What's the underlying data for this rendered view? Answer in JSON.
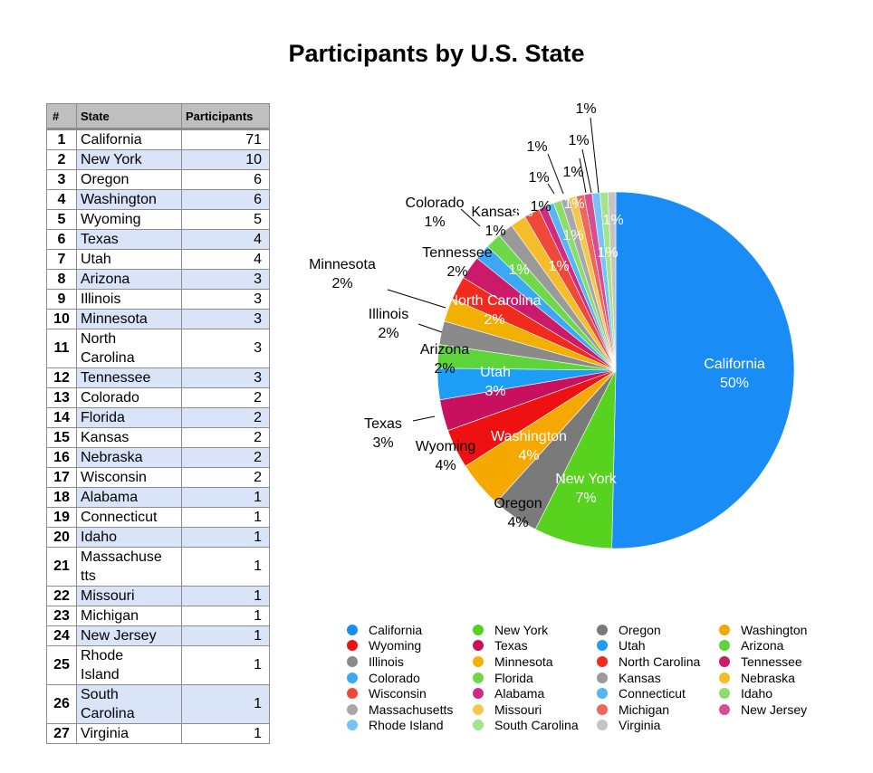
{
  "chart_data": {
    "type": "pie",
    "title": "Participants by U.S. State",
    "table": {
      "headers": [
        "#",
        "State",
        "Participants"
      ],
      "rows": [
        [
          "1",
          "California",
          "71"
        ],
        [
          "2",
          "New York",
          "10"
        ],
        [
          "3",
          "Oregon",
          "6"
        ],
        [
          "4",
          "Washington",
          "6"
        ],
        [
          "5",
          "Wyoming",
          "5"
        ],
        [
          "6",
          "Texas",
          "4"
        ],
        [
          "7",
          "Utah",
          "4"
        ],
        [
          "8",
          "Arizona",
          "3"
        ],
        [
          "9",
          "Illinois",
          "3"
        ],
        [
          "10",
          "Minnesota",
          "3"
        ],
        [
          "11",
          "North Carolina",
          "3"
        ],
        [
          "12",
          "Tennessee",
          "3"
        ],
        [
          "13",
          "Colorado",
          "2"
        ],
        [
          "14",
          "Florida",
          "2"
        ],
        [
          "15",
          "Kansas",
          "2"
        ],
        [
          "16",
          "Nebraska",
          "2"
        ],
        [
          "17",
          "Wisconsin",
          "2"
        ],
        [
          "18",
          "Alabama",
          "1"
        ],
        [
          "19",
          "Connecticut",
          "1"
        ],
        [
          "20",
          "Idaho",
          "1"
        ],
        [
          "21",
          "Massachusetts",
          "1"
        ],
        [
          "22",
          "Missouri",
          "1"
        ],
        [
          "23",
          "Michigan",
          "1"
        ],
        [
          "24",
          "New Jersey",
          "1"
        ],
        [
          "25",
          "Rhode Island",
          "1"
        ],
        [
          "26",
          "South Carolina",
          "1"
        ],
        [
          "27",
          "Virginia",
          "1"
        ]
      ]
    },
    "table_display_names": {
      "11": [
        "North",
        "Carolina"
      ],
      "21": [
        "Massachuse",
        "tts"
      ],
      "25": [
        "Rhode",
        "Island"
      ],
      "26": [
        "South",
        "Carolina"
      ]
    },
    "slices": [
      {
        "label": "California",
        "value": 71,
        "pct": "50%",
        "color": "#1a8cf5"
      },
      {
        "label": "New York",
        "value": 10,
        "pct": "7%",
        "color": "#57d21f"
      },
      {
        "label": "Oregon",
        "value": 6,
        "pct": "4%",
        "color": "#7a7a7a"
      },
      {
        "label": "Washington",
        "value": 6,
        "pct": "4%",
        "color": "#f5a800"
      },
      {
        "label": "Wyoming",
        "value": 5,
        "pct": "4%",
        "color": "#ee1111"
      },
      {
        "label": "Texas",
        "value": 4,
        "pct": "3%",
        "color": "#c8105e"
      },
      {
        "label": "Utah",
        "value": 4,
        "pct": "3%",
        "color": "#1c9ef7"
      },
      {
        "label": "Arizona",
        "value": 3,
        "pct": "2%",
        "color": "#5cd43a"
      },
      {
        "label": "Illinois",
        "value": 3,
        "pct": "2%",
        "color": "#8a8a8a"
      },
      {
        "label": "Minnesota",
        "value": 3,
        "pct": "2%",
        "color": "#f2b000"
      },
      {
        "label": "North Carolina",
        "value": 3,
        "pct": "2%",
        "color": "#f02a1c"
      },
      {
        "label": "Tennessee",
        "value": 3,
        "pct": "2%",
        "color": "#cc1a6a"
      },
      {
        "label": "Colorado",
        "value": 2,
        "pct": "1%",
        "color": "#3aa8f4"
      },
      {
        "label": "Florida",
        "value": 2,
        "pct": "1%",
        "color": "#6fd84a"
      },
      {
        "label": "Kansas",
        "value": 2,
        "pct": "1%",
        "color": "#9a9a9a"
      },
      {
        "label": "Nebraska",
        "value": 2,
        "pct": "1%",
        "color": "#f5bd2a"
      },
      {
        "label": "Wisconsin",
        "value": 2,
        "pct": "1%",
        "color": "#f0483a"
      },
      {
        "label": "Alabama",
        "value": 1,
        "pct": "1%",
        "color": "#d02b80"
      },
      {
        "label": "Connecticut",
        "value": 1,
        "pct": "1%",
        "color": "#55b5f5"
      },
      {
        "label": "Idaho",
        "value": 1,
        "pct": "1%",
        "color": "#8ddd6a"
      },
      {
        "label": "Massachusetts",
        "value": 1,
        "pct": "1%",
        "color": "#a8a8a8"
      },
      {
        "label": "Missouri",
        "value": 1,
        "pct": "1%",
        "color": "#f5c84c"
      },
      {
        "label": "Michigan",
        "value": 1,
        "pct": "1%",
        "color": "#f0665a"
      },
      {
        "label": "New Jersey",
        "value": 1,
        "pct": "1%",
        "color": "#d84c94"
      },
      {
        "label": "Rhode Island",
        "value": 1,
        "pct": "1%",
        "color": "#74c4f7"
      },
      {
        "label": "South Carolina",
        "value": 1,
        "pct": "1%",
        "color": "#a6e488"
      },
      {
        "label": "Virginia",
        "value": 1,
        "pct": "1%",
        "color": "#c4c4c4"
      }
    ],
    "legend_placement": "bottom"
  }
}
